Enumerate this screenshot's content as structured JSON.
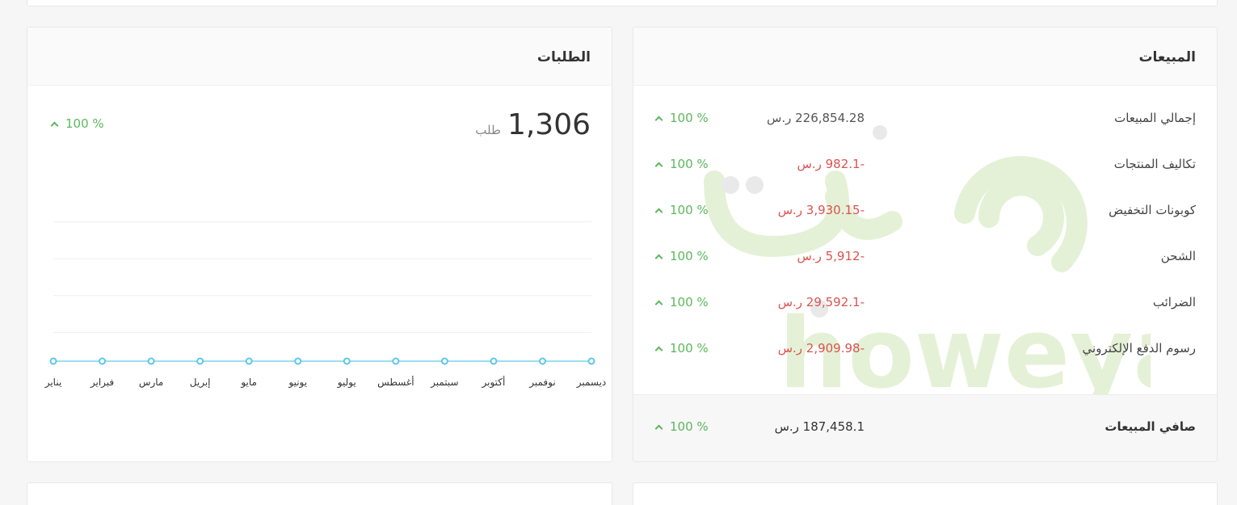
{
  "sales": {
    "title": "المبيعات",
    "rows": [
      {
        "label": "إجمالي المبيعات",
        "amount": "226,854.28 ر.س",
        "negative": false,
        "change": "100 %"
      },
      {
        "label": "تكاليف المنتجات",
        "amount": "-982.1 ر.س",
        "negative": true,
        "change": "100 %"
      },
      {
        "label": "كوبونات التخفيض",
        "amount": "-3,930.15 ر.س",
        "negative": true,
        "change": "100 %"
      },
      {
        "label": "الشحن",
        "amount": "-5,912 ر.س",
        "negative": true,
        "change": "100 %"
      },
      {
        "label": "الضرائب",
        "amount": "-29,592.1 ر.س",
        "negative": true,
        "change": "100 %"
      },
      {
        "label": "رسوم الدفع الإلكتروني",
        "amount": "-2,909.98 ر.س",
        "negative": true,
        "change": "100 %"
      }
    ],
    "net": {
      "label": "صافي المبيعات",
      "amount": "187,458.1 ر.س",
      "change": "100 %"
    }
  },
  "orders": {
    "title": "الطلبات",
    "total": "1,306",
    "unit": "طلب",
    "change": "100 %"
  },
  "watermark": {
    "text": "howeyah",
    "arabic": "هُويَّة"
  },
  "colors": {
    "positive": "#5cb85c",
    "negative": "#d9534f",
    "line": "#5bc8e8",
    "watermark": "#8bc34a"
  },
  "chart_data": {
    "type": "line",
    "categories": [
      "يناير",
      "فبراير",
      "مارس",
      "إبريل",
      "مايو",
      "يونيو",
      "يوليو",
      "أغسطس",
      "سبتمبر",
      "أكتوبر",
      "نوفمبر",
      "ديسمبر"
    ],
    "values": [
      0,
      0,
      0,
      0,
      0,
      0,
      0,
      0,
      0,
      0,
      0,
      0
    ],
    "ylim": [
      0,
      5
    ],
    "grid": true,
    "xlabel": "",
    "ylabel": ""
  }
}
